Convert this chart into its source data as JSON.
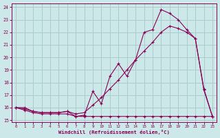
{
  "xlabel": "Windchill (Refroidissement éolien,°C)",
  "bg_color": "#cce8e8",
  "grid_color": "#aacccc",
  "line_color": "#880055",
  "xlim_min": -0.5,
  "xlim_max": 23.5,
  "ylim_min": 14.85,
  "ylim_max": 24.3,
  "xticks": [
    0,
    1,
    2,
    3,
    4,
    5,
    6,
    7,
    8,
    9,
    10,
    11,
    12,
    13,
    14,
    15,
    16,
    17,
    18,
    19,
    20,
    21,
    22,
    23
  ],
  "yticks": [
    15,
    16,
    17,
    18,
    19,
    20,
    21,
    22,
    23,
    24
  ],
  "curve1_x": [
    0,
    1,
    2,
    3,
    4,
    5,
    6,
    7,
    8,
    9,
    10,
    11,
    12,
    13,
    14,
    15,
    16,
    17,
    18,
    19,
    20,
    21,
    22,
    23
  ],
  "curve1_y": [
    16.0,
    16.0,
    15.7,
    15.6,
    15.6,
    15.6,
    15.7,
    15.3,
    15.4,
    17.3,
    16.3,
    18.5,
    19.5,
    18.5,
    19.8,
    22.0,
    22.2,
    23.8,
    23.5,
    23.0,
    22.2,
    21.5,
    17.5,
    15.3
  ],
  "curve2_x": [
    0,
    1,
    2,
    3,
    4,
    5,
    6,
    7,
    8,
    9,
    10,
    11,
    12,
    13,
    14,
    15,
    16,
    17,
    18,
    19,
    20,
    21,
    22,
    23
  ],
  "curve2_y": [
    16.0,
    15.9,
    15.7,
    15.6,
    15.6,
    15.6,
    15.7,
    15.5,
    15.6,
    16.2,
    16.8,
    17.5,
    18.2,
    19.0,
    19.8,
    20.5,
    21.2,
    22.0,
    22.5,
    22.3,
    22.0,
    21.5,
    17.4,
    15.3
  ],
  "curve3_x": [
    0,
    1,
    2,
    3,
    4,
    5,
    6,
    7,
    8,
    9,
    10,
    11,
    12,
    13,
    14,
    15,
    16,
    17,
    18,
    19,
    20,
    21,
    22,
    23
  ],
  "curve3_y": [
    16.0,
    15.8,
    15.6,
    15.5,
    15.5,
    15.5,
    15.5,
    15.3,
    15.3,
    15.3,
    15.3,
    15.3,
    15.3,
    15.3,
    15.3,
    15.3,
    15.3,
    15.3,
    15.3,
    15.3,
    15.3,
    15.3,
    15.3,
    15.3
  ]
}
